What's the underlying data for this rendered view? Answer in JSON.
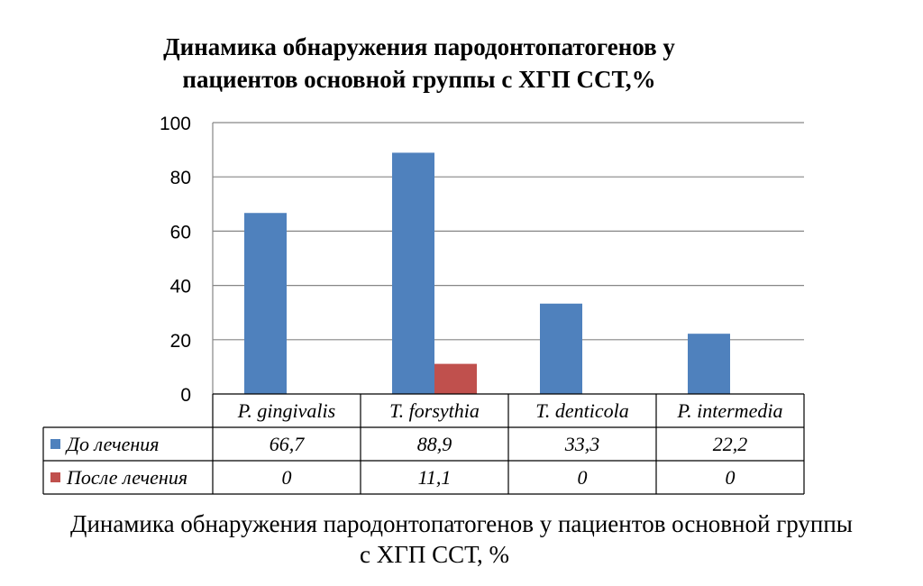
{
  "chart_data": {
    "type": "bar",
    "title": "Динамика обнаружения пародонтопатогенов у пациентов основной группы с ХГП ССТ,%",
    "title_lines": [
      "Динамика обнаружения пародонтопатогенов у",
      "пациентов основной группы с ХГП ССТ,%"
    ],
    "categories": [
      "P. gingivalis",
      "T. forsythia",
      "T. denticola",
      "P. intermedia"
    ],
    "series": [
      {
        "name": "До лечения",
        "color": "#4F81BD",
        "values": [
          66.7,
          88.9,
          33.3,
          22.2
        ],
        "labels": [
          "66,7",
          "88,9",
          "33,3",
          "22,2"
        ]
      },
      {
        "name": "После лечения",
        "color": "#C0504D",
        "values": [
          0,
          11.1,
          0,
          0
        ],
        "labels": [
          "0",
          "11,1",
          "0",
          "0"
        ]
      }
    ],
    "ylim": [
      0,
      100
    ],
    "yticks": [
      0,
      20,
      40,
      60,
      80,
      100
    ],
    "grid": true,
    "legend": "data-table"
  },
  "caption": {
    "line1": "Динамика обнаружения пародонтопатогенов у пациентов основной группы",
    "line2": "с ХГП ССТ, %"
  }
}
